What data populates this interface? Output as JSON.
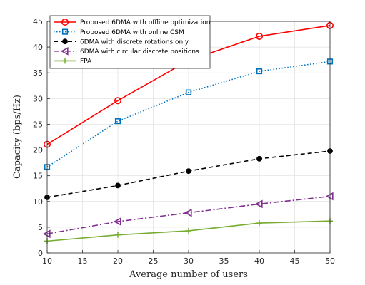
{
  "chart_data": {
    "type": "line",
    "xlabel": "Average number of users",
    "ylabel": "Capacity (bps/Hz)",
    "xlim": [
      10,
      50
    ],
    "ylim": [
      0,
      45
    ],
    "xticks": [
      10,
      15,
      20,
      25,
      30,
      35,
      40,
      45,
      50
    ],
    "yticks": [
      0,
      5,
      10,
      15,
      20,
      25,
      30,
      35,
      40,
      45
    ],
    "grid": true,
    "legend_position": "top-left",
    "x": [
      10,
      20,
      30,
      40,
      50
    ],
    "series": [
      {
        "name": "Proposed 6DMA with offline optimization",
        "color": "#ff0000",
        "marker": "circle",
        "dash": "solid",
        "values": [
          21.1,
          29.6,
          37.4,
          42.1,
          44.2
        ]
      },
      {
        "name": "Proposed 6DMA with online CSM",
        "color": "#0072bd",
        "marker": "square",
        "dash": "dotted",
        "values": [
          16.7,
          25.6,
          31.2,
          35.3,
          37.2
        ]
      },
      {
        "name": "6DMA with discrete rotations only",
        "color": "#000000",
        "marker": "dot",
        "dash": "dashed",
        "values": [
          10.8,
          13.1,
          15.9,
          18.3,
          19.8
        ]
      },
      {
        "name": "6DMA with circular discrete positions",
        "color": "#7e2f8e",
        "marker": "triangle-left",
        "dash": "dashdot",
        "values": [
          3.7,
          6.1,
          7.8,
          9.5,
          11.0
        ]
      },
      {
        "name": "FPA",
        "color": "#77ac30",
        "marker": "plus",
        "dash": "solid",
        "values": [
          2.3,
          3.5,
          4.3,
          5.8,
          6.2
        ]
      }
    ]
  }
}
